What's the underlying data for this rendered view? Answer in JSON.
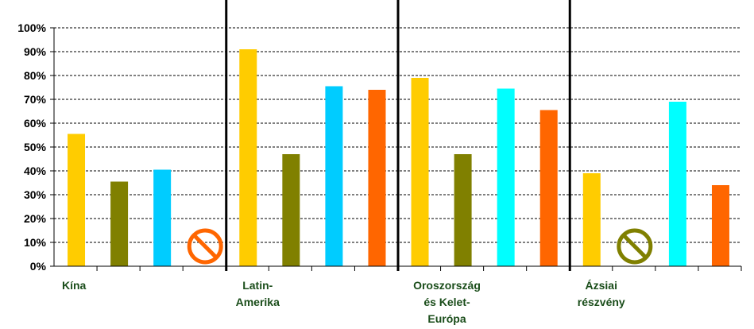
{
  "chart_data": {
    "type": "bar",
    "title": "",
    "xlabel": "",
    "ylabel": "",
    "ylim": [
      0,
      100
    ],
    "y_ticks": [
      "0%",
      "10%",
      "20%",
      "30%",
      "40%",
      "50%",
      "60%",
      "70%",
      "80%",
      "90%",
      "100%"
    ],
    "grid": "horizontal dashed",
    "legend": "none",
    "bar_colors": [
      "#FFCC00",
      "#808000",
      "#00CCFF",
      "#FF6600"
    ],
    "groups": [
      {
        "label_lines": [
          "Kína"
        ],
        "values": [
          55.5,
          35.5,
          40.5,
          null
        ],
        "bar_colors": [
          "#FFCC00",
          "#808000",
          "#00CCFF",
          "#FF6600"
        ],
        "missing_index": 3,
        "missing_symbol_color": "#FF6600"
      },
      {
        "label_lines": [
          "Latin-",
          "Amerika"
        ],
        "values": [
          91,
          47,
          75.5,
          74
        ],
        "bar_colors": [
          "#FFCC00",
          "#808000",
          "#00CCFF",
          "#FF6600"
        ]
      },
      {
        "label_lines": [
          "Oroszország",
          "és Kelet-",
          "Európa"
        ],
        "values": [
          79,
          47,
          74.5,
          65.5
        ],
        "bar_colors": [
          "#FFCC00",
          "#808000",
          "#00FFFF",
          "#FF6600"
        ]
      },
      {
        "label_lines": [
          "Ázsiai",
          "részvény"
        ],
        "values": [
          39,
          null,
          69,
          34
        ],
        "bar_colors": [
          "#FFCC00",
          "#808000",
          "#00FFFF",
          "#FF6600"
        ],
        "missing_index": 1,
        "missing_symbol_color": "#808000"
      }
    ]
  }
}
